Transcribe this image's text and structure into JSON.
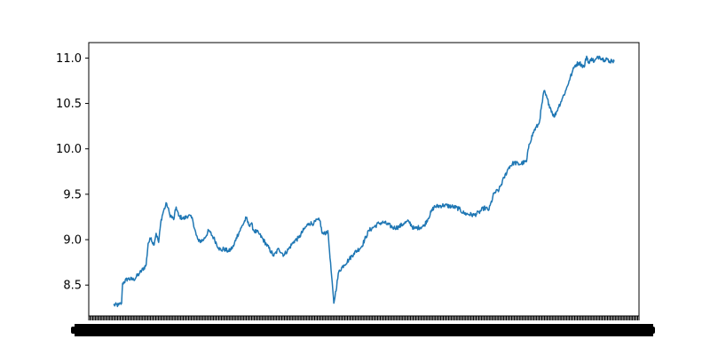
{
  "chart_data": {
    "type": "line",
    "title": "",
    "xlabel": "",
    "ylabel": "",
    "ylim": [
      8.16,
      11.17
    ],
    "yticks": [
      8.5,
      9.0,
      9.5,
      10.0,
      10.5,
      11.0
    ],
    "ytick_labels": [
      "8.5",
      "9.0",
      "9.5",
      "10.0",
      "10.5",
      "11.0"
    ],
    "xlim": [
      0,
      1
    ],
    "xtick_count": 420,
    "grid": false,
    "series": [
      {
        "color": "#1f77b4",
        "x": [
          0.0,
          0.01,
          0.016,
          0.018,
          0.028,
          0.04,
          0.052,
          0.065,
          0.069,
          0.075,
          0.08,
          0.085,
          0.09,
          0.095,
          0.1,
          0.106,
          0.112,
          0.12,
          0.125,
          0.13,
          0.14,
          0.15,
          0.158,
          0.165,
          0.17,
          0.18,
          0.19,
          0.2,
          0.21,
          0.215,
          0.22,
          0.23,
          0.24,
          0.245,
          0.255,
          0.265,
          0.27,
          0.275,
          0.28,
          0.29,
          0.305,
          0.32,
          0.33,
          0.34,
          0.35,
          0.36,
          0.37,
          0.38,
          0.39,
          0.4,
          0.408,
          0.413,
          0.416,
          0.42,
          0.428,
          0.44,
          0.45,
          0.46,
          0.47,
          0.48,
          0.495,
          0.51,
          0.52,
          0.53,
          0.54,
          0.56,
          0.57,
          0.58,
          0.59,
          0.6,
          0.62,
          0.64,
          0.66,
          0.68,
          0.69,
          0.7,
          0.72,
          0.73,
          0.74,
          0.75,
          0.76,
          0.77,
          0.78,
          0.79,
          0.8,
          0.81,
          0.825,
          0.83,
          0.84,
          0.85,
          0.86,
          0.87,
          0.88,
          0.888,
          0.896,
          0.904,
          0.91,
          0.916,
          0.922,
          0.93,
          0.94,
          0.945,
          0.95,
          0.955,
          0.96,
          0.97,
          0.98,
          0.985,
          0.99,
          0.995,
          1.0
        ],
        "y": [
          8.28,
          8.28,
          8.3,
          8.52,
          8.57,
          8.56,
          8.63,
          8.72,
          8.96,
          9.02,
          8.94,
          9.07,
          8.97,
          9.22,
          9.32,
          9.4,
          9.28,
          9.22,
          9.36,
          9.26,
          9.23,
          9.27,
          9.22,
          9.05,
          8.98,
          9.0,
          9.1,
          9.02,
          8.91,
          8.88,
          8.9,
          8.87,
          8.93,
          9.02,
          9.13,
          9.24,
          9.16,
          9.18,
          9.1,
          9.07,
          8.95,
          8.82,
          8.9,
          8.83,
          8.9,
          8.98,
          9.02,
          9.11,
          9.18,
          9.18,
          9.22,
          9.2,
          9.08,
          9.06,
          9.1,
          8.3,
          8.65,
          8.72,
          8.78,
          8.85,
          8.92,
          9.1,
          9.14,
          9.18,
          9.19,
          9.13,
          9.14,
          9.18,
          9.2,
          9.12,
          9.15,
          9.36,
          9.38,
          9.36,
          9.34,
          9.29,
          9.27,
          9.3,
          9.35,
          9.33,
          9.51,
          9.55,
          9.68,
          9.8,
          9.85,
          9.83,
          9.86,
          10.05,
          10.2,
          10.28,
          10.64,
          10.49,
          10.35,
          10.45,
          10.55,
          10.65,
          10.75,
          10.84,
          10.92,
          10.95,
          10.9,
          11.02,
          10.94,
          11.0,
          10.96,
          11.02,
          10.98,
          11.0,
          10.95,
          10.98,
          10.96
        ]
      }
    ]
  }
}
